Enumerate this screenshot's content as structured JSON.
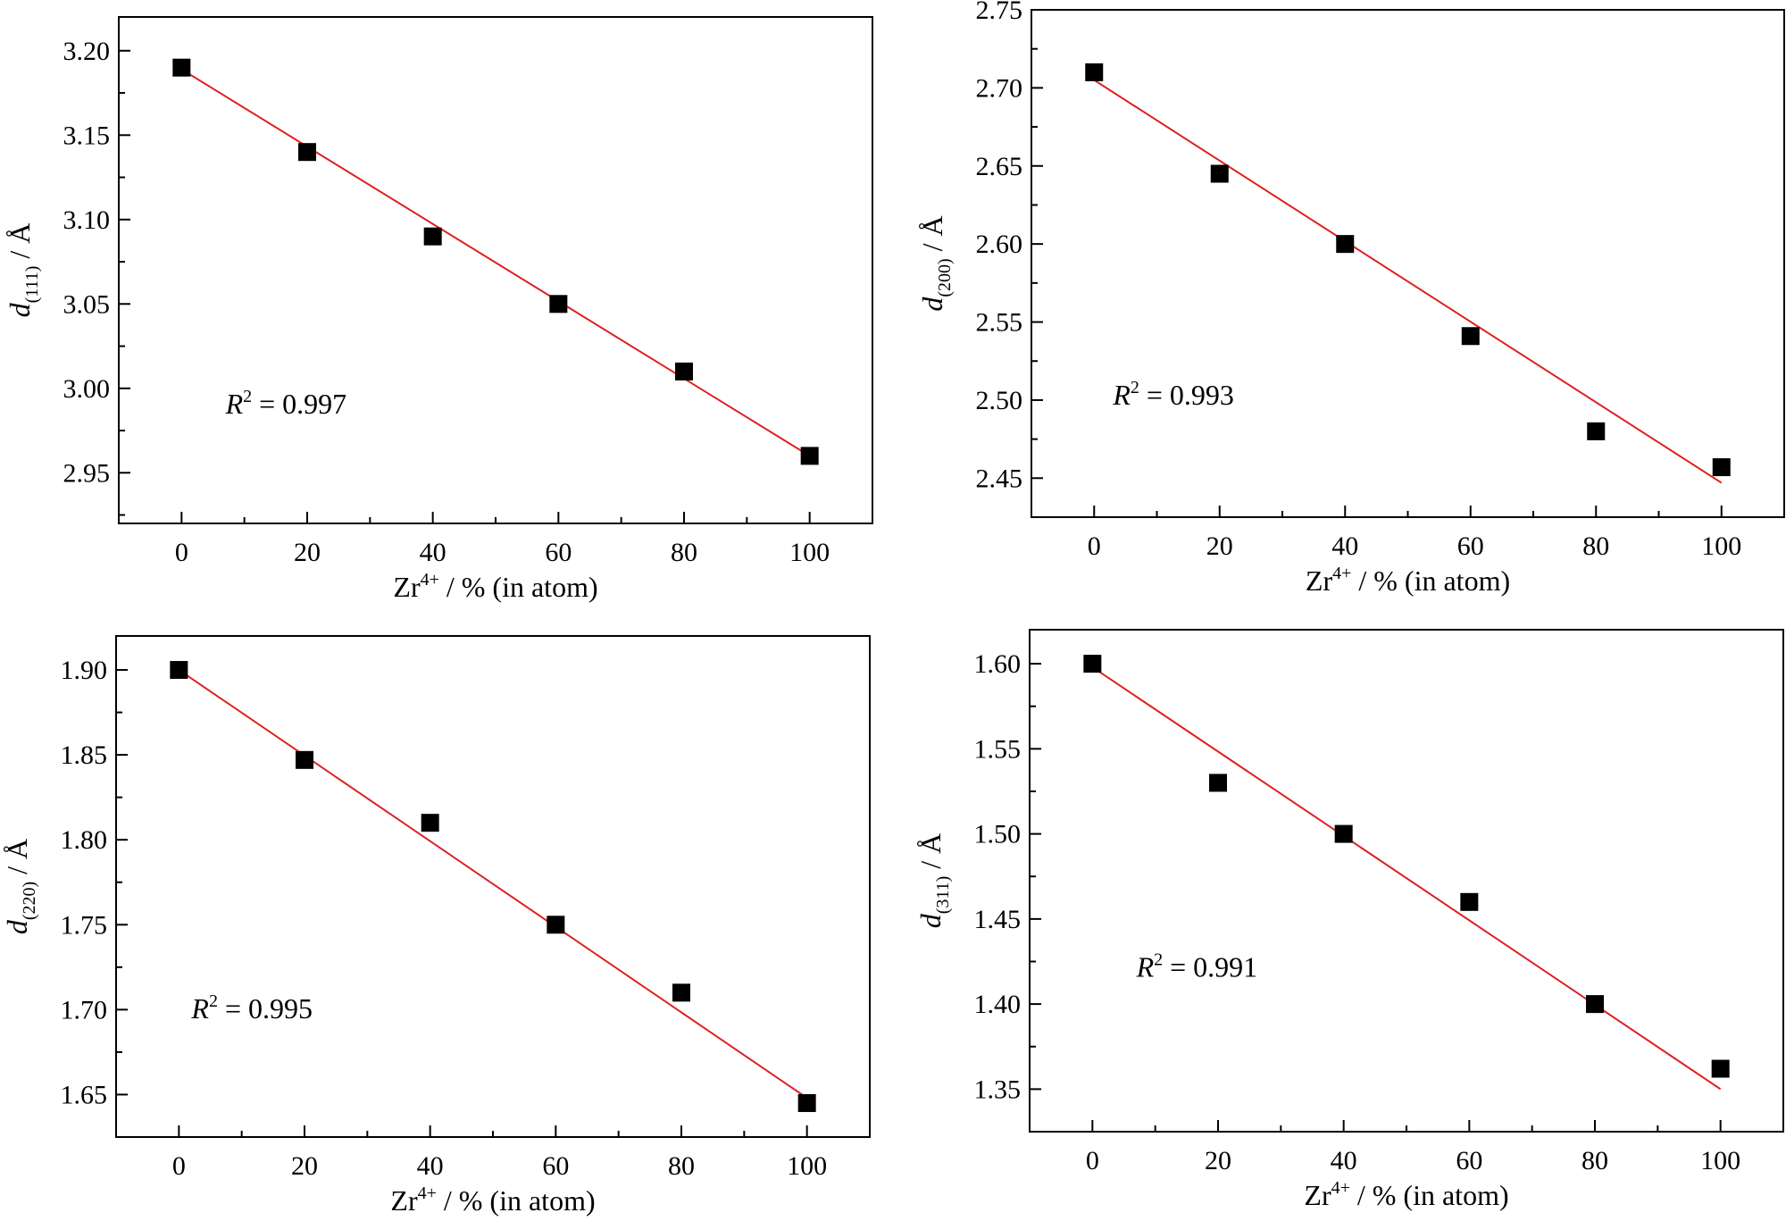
{
  "colors": {
    "marker": "#000000",
    "fit_line": "#e02020",
    "axis": "#000000"
  },
  "chart_data": [
    {
      "type": "scatter",
      "xlabel": {
        "base": "Zr",
        "sup": "4+",
        "rest": " / % (in atom)"
      },
      "ylabel": {
        "var": "d",
        "sub": "(111)",
        "rest": " / Å"
      },
      "xlim": [
        -10,
        110
      ],
      "ylim": [
        2.92,
        3.22
      ],
      "xticks": [
        0,
        20,
        40,
        60,
        80,
        100
      ],
      "yticks": [
        2.95,
        3.0,
        3.05,
        3.1,
        3.15,
        3.2
      ],
      "ytick_labels": [
        "2.95",
        "3.00",
        "3.05",
        "3.10",
        "3.15",
        "3.20"
      ],
      "x": [
        0,
        20,
        40,
        60,
        80,
        100
      ],
      "y": [
        3.19,
        3.14,
        3.09,
        3.05,
        3.01,
        2.96
      ],
      "fit": {
        "x": [
          0,
          100
        ],
        "y": [
          3.189,
          2.96
        ]
      },
      "annotation": {
        "var": "R",
        "sup": "2",
        "rest": " = 0.997",
        "x": 7,
        "y": 2.985
      }
    },
    {
      "type": "scatter",
      "xlabel": {
        "base": "Zr",
        "sup": "4+",
        "rest": " / % (in atom)"
      },
      "ylabel": {
        "var": "d",
        "sub": "(200)",
        "rest": " / Å"
      },
      "xlim": [
        -10,
        110
      ],
      "ylim": [
        2.425,
        2.75
      ],
      "xticks": [
        0,
        20,
        40,
        60,
        80,
        100
      ],
      "yticks": [
        2.45,
        2.5,
        2.55,
        2.6,
        2.65,
        2.7,
        2.75
      ],
      "ytick_labels": [
        "2.45",
        "2.50",
        "2.55",
        "2.60",
        "2.65",
        "2.70",
        "2.75"
      ],
      "x": [
        0,
        20,
        40,
        60,
        80,
        100
      ],
      "y": [
        2.71,
        2.645,
        2.6,
        2.541,
        2.48,
        2.457
      ],
      "fit": {
        "x": [
          0,
          100
        ],
        "y": [
          2.705,
          2.447
        ]
      },
      "annotation": {
        "var": "R",
        "sup": "2",
        "rest": " = 0.993",
        "x": 3,
        "y": 2.497
      }
    },
    {
      "type": "scatter",
      "xlabel": {
        "base": "Zr",
        "sup": "4+",
        "rest": " / % (in atom)"
      },
      "ylabel": {
        "var": "d",
        "sub": "(220)",
        "rest": " / Å"
      },
      "xlim": [
        -10,
        110
      ],
      "ylim": [
        1.625,
        1.92
      ],
      "xticks": [
        0,
        20,
        40,
        60,
        80,
        100
      ],
      "yticks": [
        1.65,
        1.7,
        1.75,
        1.8,
        1.85,
        1.9
      ],
      "ytick_labels": [
        "1.65",
        "1.70",
        "1.75",
        "1.80",
        "1.85",
        "1.90"
      ],
      "x": [
        0,
        20,
        40,
        60,
        80,
        100
      ],
      "y": [
        1.9,
        1.847,
        1.81,
        1.75,
        1.71,
        1.645
      ],
      "fit": {
        "x": [
          0,
          100
        ],
        "y": [
          1.9,
          1.648
        ]
      },
      "annotation": {
        "var": "R",
        "sup": "2",
        "rest": " = 0.995",
        "x": 2,
        "y": 1.695
      }
    },
    {
      "type": "scatter",
      "xlabel": {
        "base": "Zr",
        "sup": "4+",
        "rest": " / % (in atom)"
      },
      "ylabel": {
        "var": "d",
        "sub": "(311)",
        "rest": " / Å"
      },
      "xlim": [
        -10,
        110
      ],
      "ylim": [
        1.325,
        1.62
      ],
      "xticks": [
        0,
        20,
        40,
        60,
        80,
        100
      ],
      "yticks": [
        1.35,
        1.4,
        1.45,
        1.5,
        1.55,
        1.6
      ],
      "ytick_labels": [
        "1.35",
        "1.40",
        "1.45",
        "1.50",
        "1.55",
        "1.60"
      ],
      "x": [
        0,
        20,
        40,
        60,
        80,
        100
      ],
      "y": [
        1.6,
        1.53,
        1.5,
        1.46,
        1.4,
        1.362
      ],
      "fit": {
        "x": [
          0,
          100
        ],
        "y": [
          1.598,
          1.35
        ]
      },
      "annotation": {
        "var": "R",
        "sup": "2",
        "rest": " = 0.991",
        "x": 7,
        "y": 1.416
      }
    }
  ]
}
